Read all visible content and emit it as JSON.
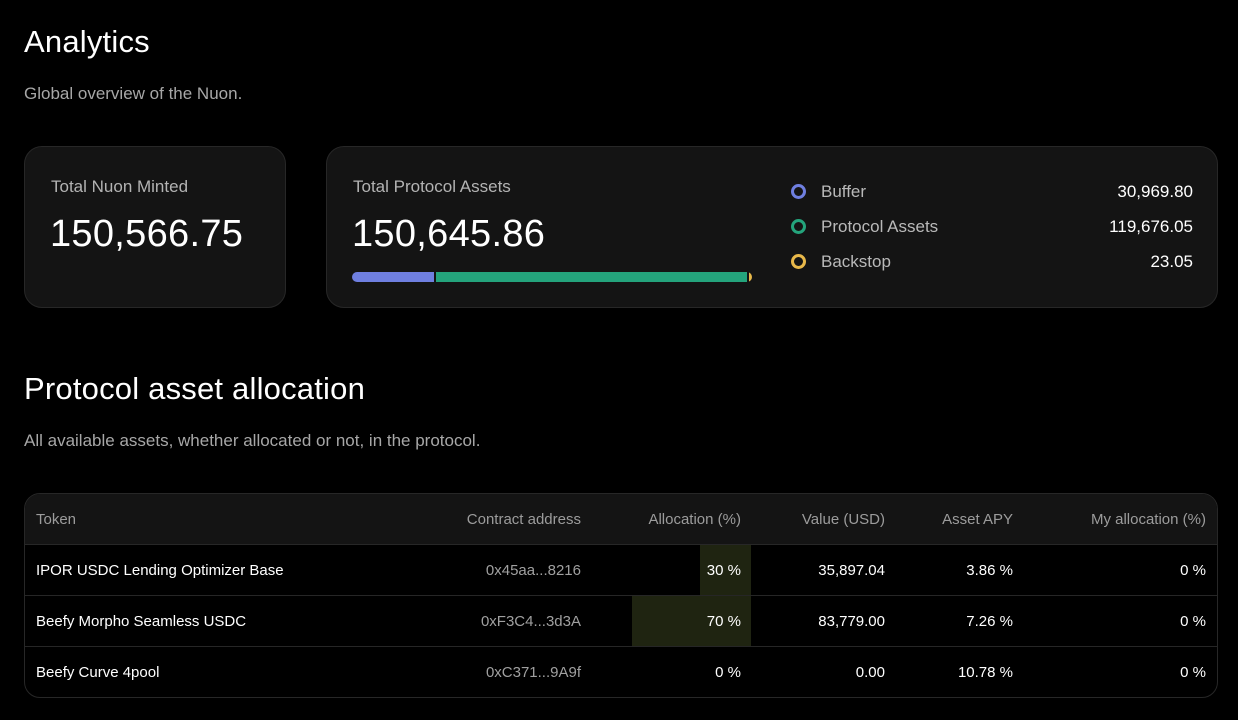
{
  "header": {
    "title": "Analytics",
    "subtitle": "Global overview of the Nuon."
  },
  "minted_card": {
    "label": "Total Nuon Minted",
    "value": "150,566.75"
  },
  "assets_card": {
    "label": "Total Protocol Assets",
    "value": "150,645.86",
    "legend": [
      {
        "name": "Buffer",
        "value": "30,969.80",
        "amount": 30969.8,
        "color": "#6f7fe0"
      },
      {
        "name": "Protocol Assets",
        "value": "119,676.05",
        "amount": 119676.05,
        "color": "#24a47c"
      },
      {
        "name": "Backstop",
        "value": "23.05",
        "amount": 23.05,
        "color": "#e8b84a"
      }
    ]
  },
  "allocation_section": {
    "title": "Protocol asset allocation",
    "subtitle": "All available assets, whether allocated or not, in the protocol."
  },
  "table": {
    "columns": [
      "Token",
      "Contract address",
      "Allocation (%)",
      "Value (USD)",
      "Asset APY",
      "My allocation (%)"
    ],
    "rows": [
      {
        "token": "IPOR USDC Lending Optimizer Base",
        "address": "0x45aa...8216",
        "allocation": "30 %",
        "allocation_pct": 30,
        "value": "35,897.04",
        "apy": "3.86 %",
        "my_allocation": "0 %"
      },
      {
        "token": "Beefy Morpho Seamless USDC",
        "address": "0xF3C4...3d3A",
        "allocation": "70 %",
        "allocation_pct": 70,
        "value": "83,779.00",
        "apy": "7.26 %",
        "my_allocation": "0 %"
      },
      {
        "token": "Beefy Curve 4pool",
        "address": "0xC371...9A9f",
        "allocation": "0 %",
        "allocation_pct": 0,
        "value": "0.00",
        "apy": "10.78 %",
        "my_allocation": "0 %"
      }
    ]
  }
}
